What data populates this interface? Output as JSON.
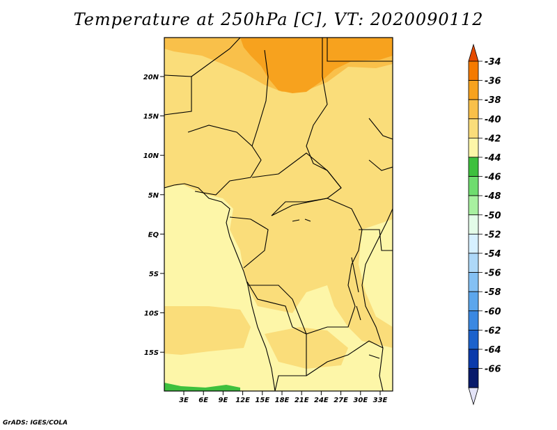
{
  "title": "Temperature at 250hPa [C], VT: 2020090112",
  "credit": "GrADS: IGES/COLA",
  "map": {
    "lat_labels": [
      "20N",
      "15N",
      "10N",
      "5N",
      "EQ",
      "5S",
      "10S",
      "15S"
    ],
    "lon_labels": [
      "3E",
      "6E",
      "9E",
      "12E",
      "15E",
      "18E",
      "21E",
      "24E",
      "27E",
      "30E",
      "33E"
    ]
  },
  "colorbar": {
    "labels": [
      "-34",
      "-36",
      "-38",
      "-40",
      "-42",
      "-44",
      "-46",
      "-48",
      "-50",
      "-52",
      "-54",
      "-56",
      "-58",
      "-60",
      "-62",
      "-64",
      "-66"
    ],
    "colors": [
      "#e54b00",
      "#f47a00",
      "#f7a21e",
      "#f9c04a",
      "#fadd7a",
      "#fdf6a8",
      "#3ec03e",
      "#6fdc6f",
      "#a8f0a0",
      "#e3fce8",
      "#d6f0ff",
      "#aed8f8",
      "#84c0f3",
      "#5ca6ec",
      "#3a88e2",
      "#1c62cc",
      "#0a3aab",
      "#081a6b",
      "#e4e4f8"
    ]
  },
  "colors": {
    "t_36_38": "#f7a21e",
    "t_38_40": "#f9c04a",
    "t_40_42": "#fadd7a",
    "t_42_44": "#fdf6a8",
    "t_44_46": "#3ec03e"
  }
}
